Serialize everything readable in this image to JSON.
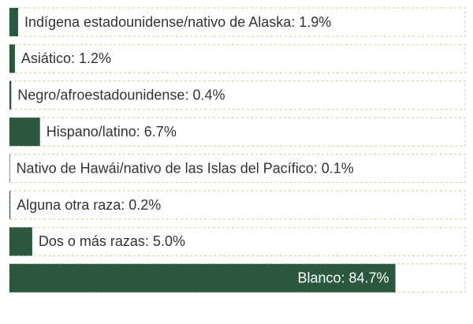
{
  "chart_data": {
    "type": "bar",
    "orientation": "horizontal",
    "color": "#2b5940",
    "xlim": [
      0,
      100
    ],
    "values": [
      1.9,
      1.2,
      0.4,
      6.7,
      0.1,
      0.2,
      5.0,
      84.7
    ],
    "value_labels": [
      "Indígena estadounidense/nativo de Alaska: 1.9%",
      "Asiático: 1.2%",
      "Negro/afroestadounidense: 0.4%",
      "Hispano/latino: 6.7%",
      "Nativo de Hawái/nativo de las Islas del Pacífico: 0.1%",
      "Alguna otra raza: 0.2%",
      "Dos o más razas: 5.0%",
      "Blanco: 84.7%"
    ]
  }
}
